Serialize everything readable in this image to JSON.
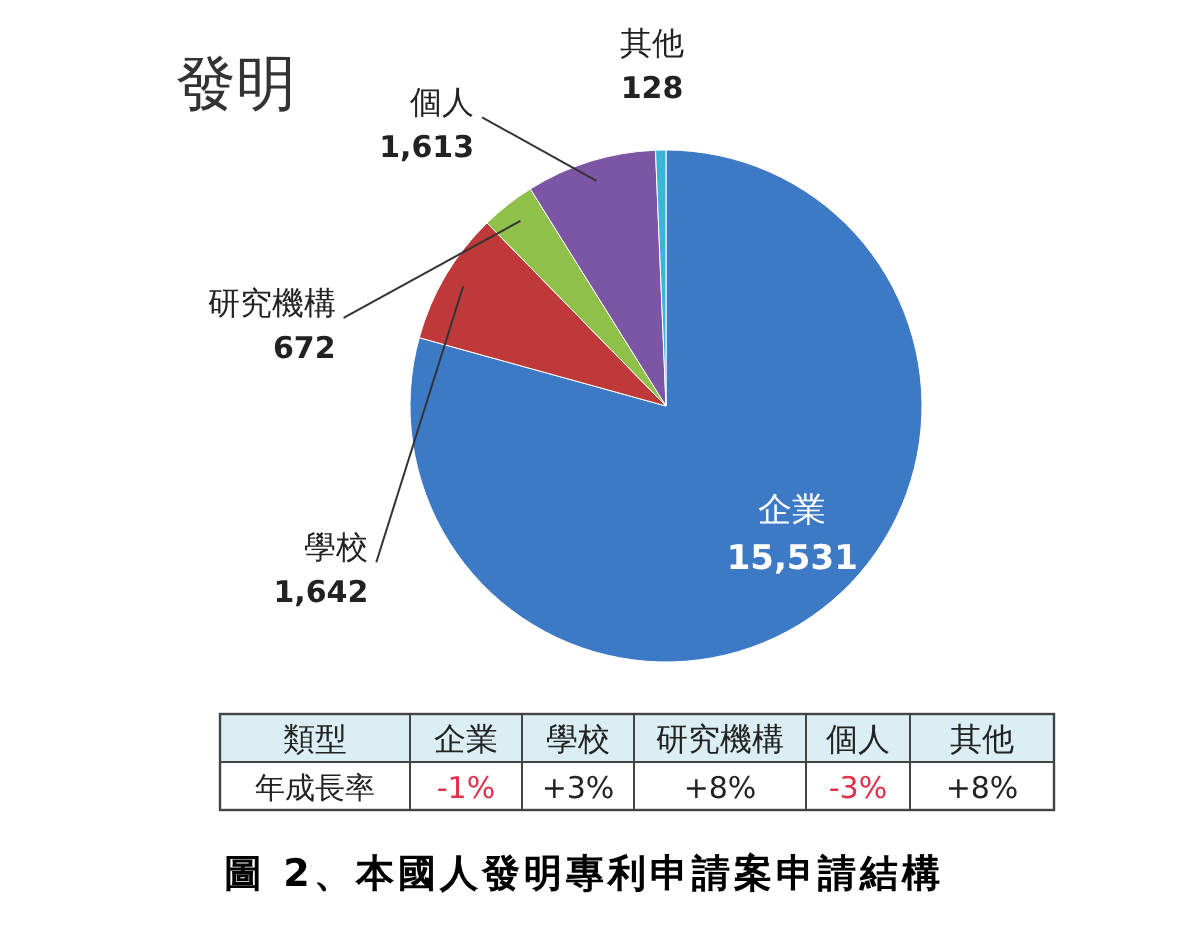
{
  "chart_data": {
    "type": "pie",
    "title": "發明",
    "categories": [
      "企業",
      "學校",
      "研究機構",
      "個人",
      "其他"
    ],
    "values": [
      15531,
      1642,
      672,
      1613,
      128
    ],
    "colors": [
      "#3d7ac6",
      "#c0393a",
      "#8fc04a",
      "#7c55a4",
      "#3bb5d6"
    ],
    "value_labels": [
      "15,531",
      "1,642",
      "672",
      "1,613",
      "128"
    ],
    "annotations": [
      "類型",
      "年成長率",
      "-1%",
      "+3%",
      "+8%",
      "-3%",
      "+8%",
      "圖 2、本國人發明專利申請案申請結構"
    ]
  }
}
